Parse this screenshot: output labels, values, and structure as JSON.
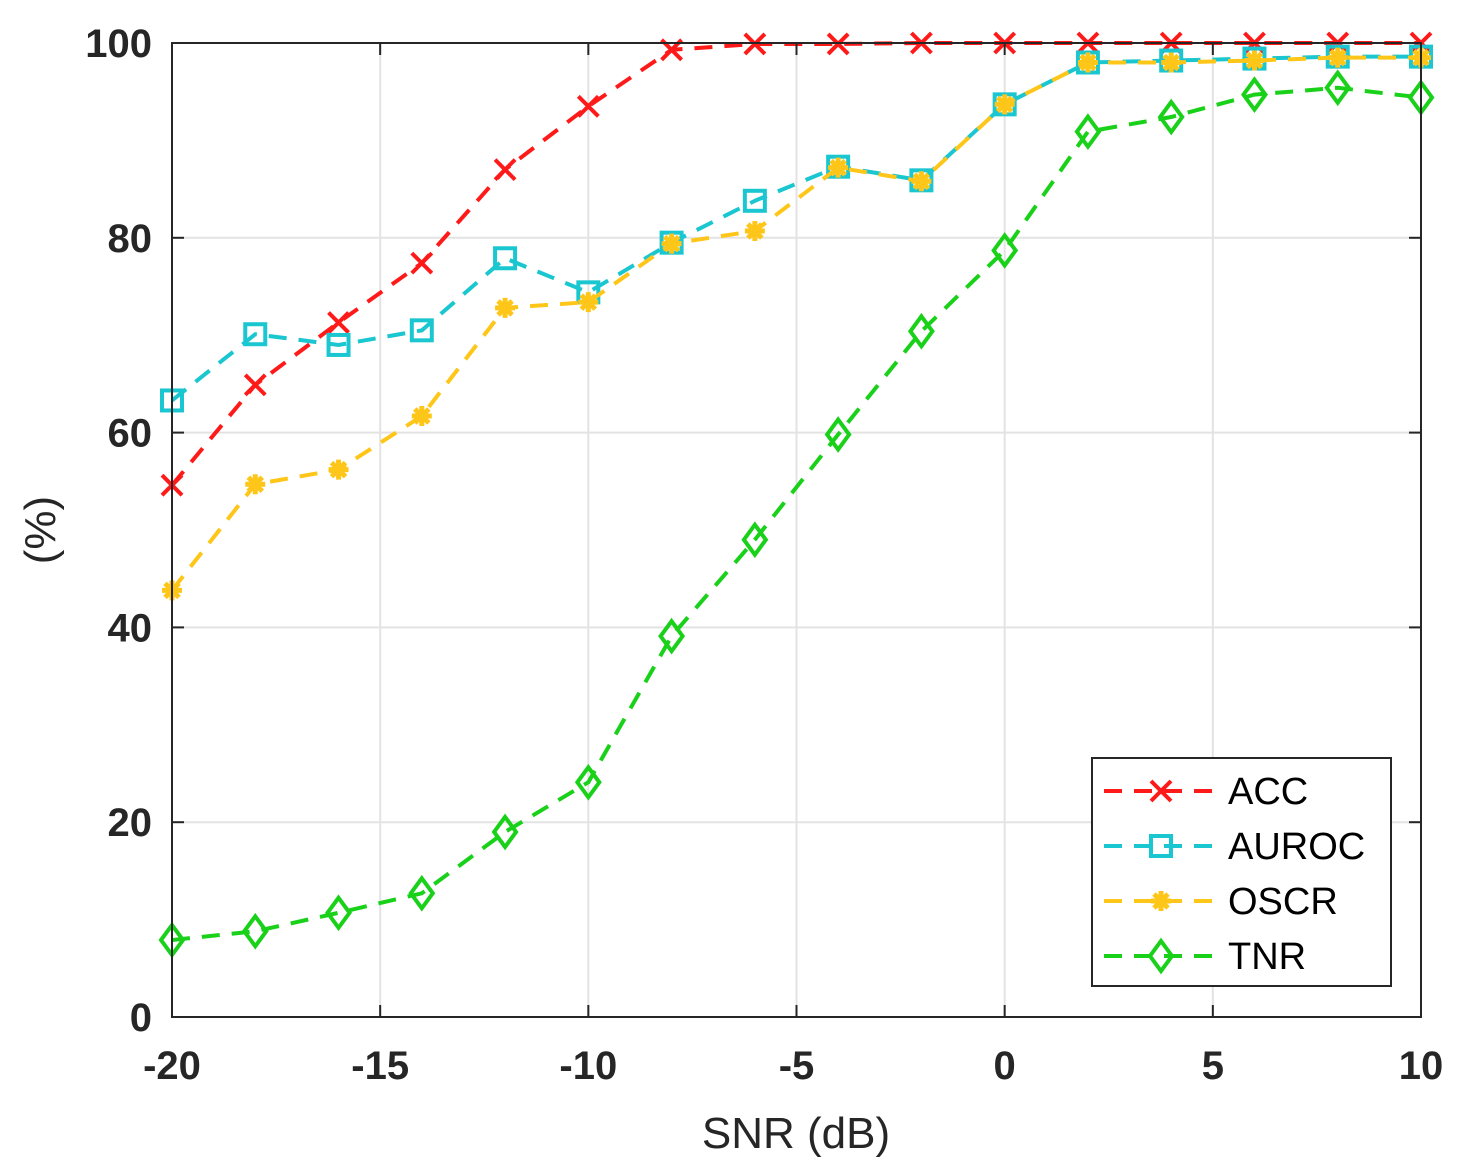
{
  "chart_data": {
    "type": "line",
    "title": "",
    "xlabel": "SNR (dB)",
    "ylabel": "(%)",
    "xlim": [
      -20,
      10
    ],
    "ylim": [
      0,
      100
    ],
    "xticks": [
      -20,
      -15,
      -10,
      -5,
      0,
      5,
      10
    ],
    "yticks": [
      0,
      20,
      40,
      60,
      80,
      100
    ],
    "grid": true,
    "legend_position": "bottom-right",
    "x": [
      -20,
      -18,
      -16,
      -14,
      -12,
      -10,
      -8,
      -6,
      -4,
      -2,
      0,
      2,
      4,
      6,
      8,
      10
    ],
    "series": [
      {
        "name": "ACC",
        "color": "#ff1a1a",
        "marker": "x",
        "line": "dashed",
        "values": [
          54.6,
          64.9,
          71.3,
          77.4,
          87.0,
          93.5,
          99.3,
          99.9,
          99.9,
          100,
          100,
          100,
          100,
          100,
          100,
          100
        ]
      },
      {
        "name": "AUROC",
        "color": "#1ac6d0",
        "marker": "square",
        "line": "dashed",
        "values": [
          63.3,
          70.1,
          69.0,
          70.5,
          77.9,
          74.4,
          79.5,
          83.8,
          87.3,
          85.9,
          93.7,
          98.0,
          98.2,
          98.4,
          98.6,
          98.6
        ]
      },
      {
        "name": "OSCR",
        "color": "#ffc61a",
        "marker": "star",
        "line": "dashed",
        "values": [
          43.8,
          54.7,
          56.2,
          61.7,
          72.8,
          73.4,
          79.4,
          80.7,
          87.2,
          85.8,
          93.7,
          98.0,
          98.0,
          98.2,
          98.5,
          98.5
        ]
      },
      {
        "name": "TNR",
        "color": "#1ad11a",
        "marker": "diamond",
        "line": "dashed",
        "values": [
          7.9,
          8.8,
          10.7,
          12.7,
          19.0,
          24.1,
          39.1,
          49.0,
          59.8,
          70.4,
          78.7,
          90.9,
          92.4,
          94.7,
          95.4,
          94.4
        ]
      }
    ]
  }
}
